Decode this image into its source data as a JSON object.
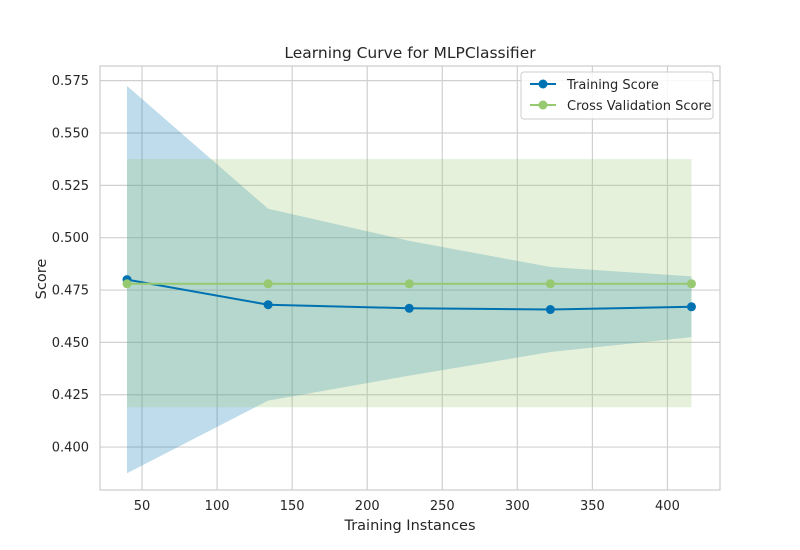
{
  "chart_data": {
    "type": "line",
    "title": "Learning Curve for MLPClassifier",
    "xlabel": "Training Instances",
    "ylabel": "Score",
    "xlim": [
      22,
      435
    ],
    "ylim": [
      0.3795,
      0.582
    ],
    "x_ticks": [
      50,
      100,
      150,
      200,
      250,
      300,
      350,
      400
    ],
    "y_ticks": [
      0.4,
      0.425,
      0.45,
      0.475,
      0.5,
      0.525,
      0.55,
      0.575
    ],
    "y_tick_labels": [
      "0.400",
      "0.425",
      "0.450",
      "0.475",
      "0.500",
      "0.525",
      "0.550",
      "0.575"
    ],
    "x": [
      40,
      134,
      228,
      322,
      416
    ],
    "series": [
      {
        "name": "Training Score",
        "color": "#0072B2",
        "band_color": "#0072B2",
        "values": [
          0.48,
          0.468,
          0.4663,
          0.4657,
          0.467
        ],
        "band_upper": [
          0.5725,
          0.5138,
          0.4985,
          0.486,
          0.4815
        ],
        "band_lower": [
          0.3875,
          0.4222,
          0.4341,
          0.4454,
          0.4525
        ]
      },
      {
        "name": "Cross Validation Score",
        "color": "#97C970",
        "band_color": "#97C970",
        "values": [
          0.478,
          0.478,
          0.478,
          0.478,
          0.478
        ],
        "band_upper": [
          0.5375,
          0.5375,
          0.5375,
          0.5375,
          0.5375
        ],
        "band_lower": [
          0.419,
          0.419,
          0.419,
          0.419,
          0.419
        ]
      }
    ],
    "grid": true,
    "legend_position": "top-right"
  }
}
